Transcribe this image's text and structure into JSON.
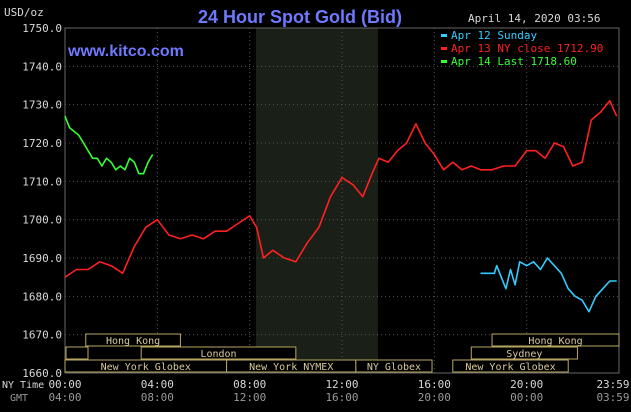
{
  "chart_data": {
    "type": "line",
    "title": "24 Hour Spot Gold (Bid)",
    "timestamp": "April 14, 2020 03:56",
    "brand": "www.kitco.com",
    "ylabel": "USD/oz",
    "ylim": [
      1660,
      1750
    ],
    "y_ticks": [
      "1750.0",
      "1740.0",
      "1730.0",
      "1720.0",
      "1710.0",
      "1700.0",
      "1690.0",
      "1680.0",
      "1670.0",
      "1660.0"
    ],
    "x_row_label_1": "NY Time",
    "x_row_label_2": "GMT",
    "x_ticks_ny": [
      "00:00",
      "04:00",
      "08:00",
      "12:00",
      "16:00",
      "20:00",
      "23:59"
    ],
    "x_ticks_gmt": [
      "04:00",
      "08:00",
      "12:00",
      "16:00",
      "20:00",
      "00:00",
      "03:59"
    ],
    "legend": [
      {
        "label": "Apr 12 Sunday",
        "color": "#33ccff"
      },
      {
        "label": "Apr 13 NY close 1712.90",
        "color": "#ff2020"
      },
      {
        "label": "Apr 14 Last 1718.60",
        "color": "#33ff33"
      }
    ],
    "sessions": [
      "Hong Kong",
      "London",
      "New York Globex",
      "New York NYMEX",
      "NY Globex",
      "Hong Kong",
      "Sydney",
      "New York Globex"
    ],
    "series": [
      {
        "name": "Apr 14 Last 1718.60",
        "color": "#33ff33",
        "points": [
          [
            0.0,
            1727
          ],
          [
            0.2,
            1724
          ],
          [
            0.4,
            1723
          ],
          [
            0.6,
            1722
          ],
          [
            0.8,
            1720
          ],
          [
            1.0,
            1718
          ],
          [
            1.2,
            1716
          ],
          [
            1.4,
            1716
          ],
          [
            1.6,
            1714
          ],
          [
            1.8,
            1716
          ],
          [
            2.0,
            1715
          ],
          [
            2.2,
            1713
          ],
          [
            2.4,
            1714
          ],
          [
            2.6,
            1713
          ],
          [
            2.8,
            1716
          ],
          [
            3.0,
            1715
          ],
          [
            3.2,
            1712
          ],
          [
            3.4,
            1712
          ],
          [
            3.6,
            1715
          ],
          [
            3.8,
            1717
          ]
        ]
      },
      {
        "name": "Apr 13 NY close 1712.90",
        "color": "#ff2020",
        "points": [
          [
            0.0,
            1685
          ],
          [
            0.5,
            1687
          ],
          [
            1.0,
            1687
          ],
          [
            1.5,
            1689
          ],
          [
            2.0,
            1688
          ],
          [
            2.5,
            1686
          ],
          [
            3.0,
            1693
          ],
          [
            3.5,
            1698
          ],
          [
            4.0,
            1700
          ],
          [
            4.5,
            1696
          ],
          [
            5.0,
            1695
          ],
          [
            5.5,
            1696
          ],
          [
            6.0,
            1695
          ],
          [
            6.5,
            1697
          ],
          [
            7.0,
            1697
          ],
          [
            7.5,
            1699
          ],
          [
            8.0,
            1701
          ],
          [
            8.3,
            1698
          ],
          [
            8.6,
            1690
          ],
          [
            9.0,
            1692
          ],
          [
            9.5,
            1690
          ],
          [
            10.0,
            1689
          ],
          [
            10.5,
            1694
          ],
          [
            11.0,
            1698
          ],
          [
            11.5,
            1706
          ],
          [
            12.0,
            1711
          ],
          [
            12.5,
            1709
          ],
          [
            12.9,
            1706
          ],
          [
            13.3,
            1712
          ],
          [
            13.6,
            1716
          ],
          [
            14.0,
            1715
          ],
          [
            14.4,
            1718
          ],
          [
            14.8,
            1720
          ],
          [
            15.2,
            1725
          ],
          [
            15.6,
            1720
          ],
          [
            16.0,
            1717
          ],
          [
            16.4,
            1713
          ],
          [
            16.8,
            1715
          ],
          [
            17.2,
            1713
          ],
          [
            17.6,
            1714
          ],
          [
            18.0,
            1713
          ],
          [
            18.5,
            1713
          ],
          [
            19.0,
            1714
          ],
          [
            19.5,
            1714
          ],
          [
            20.0,
            1718
          ],
          [
            20.4,
            1718
          ],
          [
            20.8,
            1716
          ],
          [
            21.2,
            1720
          ],
          [
            21.6,
            1719
          ],
          [
            22.0,
            1714
          ],
          [
            22.4,
            1715
          ],
          [
            22.8,
            1726
          ],
          [
            23.2,
            1728
          ],
          [
            23.6,
            1731
          ],
          [
            23.9,
            1727
          ]
        ]
      },
      {
        "name": "Apr 12 Sunday",
        "color": "#33ccff",
        "points": [
          [
            18.0,
            1686
          ],
          [
            18.6,
            1686
          ],
          [
            18.7,
            1688
          ],
          [
            18.9,
            1685
          ],
          [
            19.1,
            1682
          ],
          [
            19.3,
            1687
          ],
          [
            19.5,
            1683
          ],
          [
            19.7,
            1689
          ],
          [
            20.0,
            1688
          ],
          [
            20.3,
            1689
          ],
          [
            20.6,
            1687
          ],
          [
            20.9,
            1690
          ],
          [
            21.2,
            1688
          ],
          [
            21.5,
            1686
          ],
          [
            21.8,
            1682
          ],
          [
            22.1,
            1680
          ],
          [
            22.4,
            1679
          ],
          [
            22.7,
            1676
          ],
          [
            23.0,
            1680
          ],
          [
            23.3,
            1682
          ],
          [
            23.6,
            1684
          ],
          [
            23.9,
            1684
          ]
        ]
      }
    ]
  }
}
